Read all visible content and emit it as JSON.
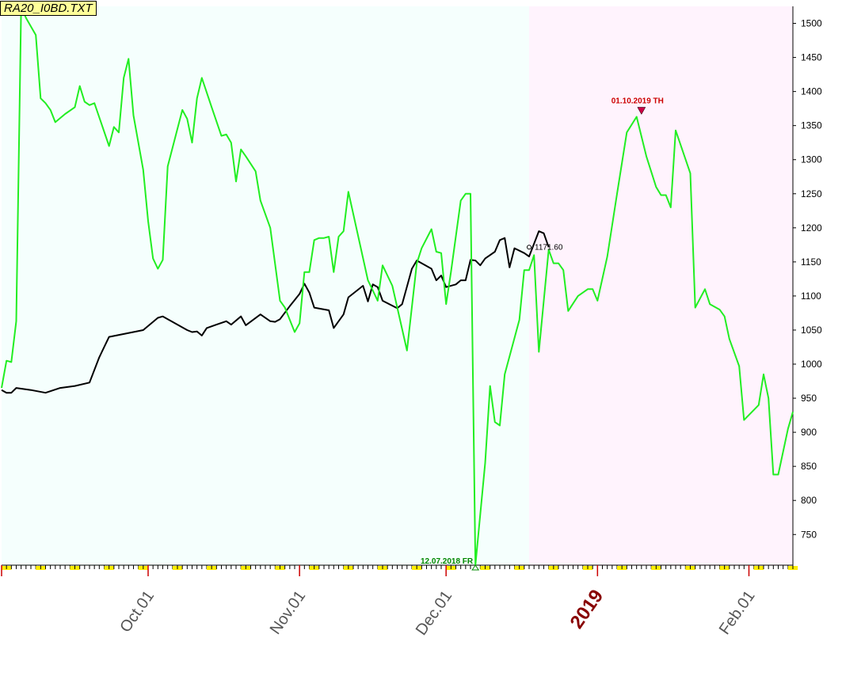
{
  "chart_data": {
    "type": "line",
    "title": "RA20_I0BD.TXT",
    "x_axis": {
      "labels": [
        "Oct.01",
        "Nov.01",
        "Dec.01",
        "2019",
        "Feb.01"
      ],
      "range": [
        "2018-09-01",
        "2019-02-10"
      ]
    },
    "y_axis": {
      "position": "right",
      "range": [
        705,
        1525
      ],
      "ticks": [
        750,
        800,
        850,
        900,
        950,
        1000,
        1050,
        1100,
        1150,
        1200,
        1250,
        1300,
        1350,
        1400,
        1450,
        1500
      ]
    },
    "regions": [
      {
        "from": "2018-09-01",
        "to": "2018-12-18",
        "color": "#f5fffd"
      },
      {
        "from": "2018-12-18",
        "to": "2019-02-10",
        "color": "#fff3fd"
      }
    ],
    "annotations": [
      {
        "text": "01.10.2019 TH",
        "date": "2019-01-10",
        "value": 1363,
        "color": "#cc0000",
        "marker": "down-arrow"
      },
      {
        "text": "12.07.2018 FR",
        "date": "2018-12-07",
        "value": 705,
        "color": "#008800",
        "marker": "up-arrow"
      },
      {
        "text": "1171.60",
        "date": "2018-12-18",
        "value": 1171.6,
        "color": "#000000",
        "marker": "circle"
      }
    ],
    "series": [
      {
        "color": "#000000",
        "points": [
          [
            "2018-09-01",
            962
          ],
          [
            "2018-09-02",
            958
          ],
          [
            "2018-09-03",
            958
          ],
          [
            "2018-09-04",
            965
          ],
          [
            "2018-09-07",
            962
          ],
          [
            "2018-09-10",
            958
          ],
          [
            "2018-09-13",
            965
          ],
          [
            "2018-09-16",
            968
          ],
          [
            "2018-09-19",
            973
          ],
          [
            "2018-09-21",
            1010
          ],
          [
            "2018-09-23",
            1040
          ],
          [
            "2018-09-30",
            1050
          ],
          [
            "2018-10-02",
            1062
          ],
          [
            "2018-10-03",
            1068
          ],
          [
            "2018-10-04",
            1070
          ],
          [
            "2018-10-06",
            1062
          ],
          [
            "2018-10-09",
            1050
          ],
          [
            "2018-10-10",
            1047
          ],
          [
            "2018-10-11",
            1048
          ],
          [
            "2018-10-12",
            1042
          ],
          [
            "2018-10-13",
            1053
          ],
          [
            "2018-10-15",
            1058
          ],
          [
            "2018-10-17",
            1063
          ],
          [
            "2018-10-18",
            1058
          ],
          [
            "2018-10-20",
            1070
          ],
          [
            "2018-10-21",
            1057
          ],
          [
            "2018-10-24",
            1073
          ],
          [
            "2018-10-26",
            1063
          ],
          [
            "2018-10-27",
            1062
          ],
          [
            "2018-10-28",
            1066
          ],
          [
            "2018-10-30",
            1085
          ],
          [
            "2018-11-01",
            1103
          ],
          [
            "2018-11-02",
            1118
          ],
          [
            "2018-11-03",
            1105
          ],
          [
            "2018-11-04",
            1083
          ],
          [
            "2018-11-07",
            1079
          ],
          [
            "2018-11-08",
            1053
          ],
          [
            "2018-11-10",
            1073
          ],
          [
            "2018-11-11",
            1098
          ],
          [
            "2018-11-14",
            1115
          ],
          [
            "2018-11-15",
            1092
          ],
          [
            "2018-11-16",
            1117
          ],
          [
            "2018-11-17",
            1113
          ],
          [
            "2018-11-18",
            1093
          ],
          [
            "2018-11-21",
            1082
          ],
          [
            "2018-11-22",
            1088
          ],
          [
            "2018-11-24",
            1140
          ],
          [
            "2018-11-25",
            1152
          ],
          [
            "2018-11-28",
            1140
          ],
          [
            "2018-11-29",
            1123
          ],
          [
            "2018-11-30",
            1130
          ],
          [
            "2018-12-01",
            1113
          ],
          [
            "2018-12-03",
            1117
          ],
          [
            "2018-12-04",
            1123
          ],
          [
            "2018-12-05",
            1123
          ],
          [
            "2018-12-06",
            1153
          ],
          [
            "2018-12-07",
            1152
          ],
          [
            "2018-12-08",
            1145
          ],
          [
            "2018-12-09",
            1155
          ],
          [
            "2018-12-11",
            1165
          ],
          [
            "2018-12-12",
            1182
          ],
          [
            "2018-12-13",
            1185
          ],
          [
            "2018-12-14",
            1142
          ],
          [
            "2018-12-15",
            1170
          ],
          [
            "2018-12-17",
            1163
          ],
          [
            "2018-12-18",
            1158
          ],
          [
            "2018-12-20",
            1195
          ],
          [
            "2018-12-21",
            1192
          ],
          [
            "2018-12-22",
            1171.6
          ]
        ]
      },
      {
        "color": "#22ee22",
        "points": [
          [
            "2018-09-01",
            965
          ],
          [
            "2018-09-02",
            1005
          ],
          [
            "2018-09-03",
            1003
          ],
          [
            "2018-09-04",
            1063
          ],
          [
            "2018-09-05",
            1525
          ],
          [
            "2018-09-06",
            1508
          ],
          [
            "2018-09-08",
            1483
          ],
          [
            "2018-09-09",
            1390
          ],
          [
            "2018-09-10",
            1383
          ],
          [
            "2018-09-11",
            1373
          ],
          [
            "2018-09-12",
            1355
          ],
          [
            "2018-09-14",
            1367
          ],
          [
            "2018-09-16",
            1377
          ],
          [
            "2018-09-17",
            1408
          ],
          [
            "2018-09-18",
            1385
          ],
          [
            "2018-09-19",
            1380
          ],
          [
            "2018-09-20",
            1383
          ],
          [
            "2018-09-23",
            1320
          ],
          [
            "2018-09-24",
            1348
          ],
          [
            "2018-09-25",
            1340
          ],
          [
            "2018-09-26",
            1420
          ],
          [
            "2018-09-27",
            1448
          ],
          [
            "2018-09-28",
            1365
          ],
          [
            "2018-09-30",
            1285
          ],
          [
            "2018-10-01",
            1210
          ],
          [
            "2018-10-02",
            1155
          ],
          [
            "2018-10-03",
            1140
          ],
          [
            "2018-10-04",
            1153
          ],
          [
            "2018-10-05",
            1290
          ],
          [
            "2018-10-08",
            1373
          ],
          [
            "2018-10-09",
            1360
          ],
          [
            "2018-10-10",
            1325
          ],
          [
            "2018-10-11",
            1390
          ],
          [
            "2018-10-12",
            1420
          ],
          [
            "2018-10-14",
            1377
          ],
          [
            "2018-10-16",
            1335
          ],
          [
            "2018-10-17",
            1337
          ],
          [
            "2018-10-18",
            1325
          ],
          [
            "2018-10-19",
            1268
          ],
          [
            "2018-10-20",
            1315
          ],
          [
            "2018-10-21",
            1305
          ],
          [
            "2018-10-23",
            1283
          ],
          [
            "2018-10-24",
            1240
          ],
          [
            "2018-10-26",
            1200
          ],
          [
            "2018-10-28",
            1093
          ],
          [
            "2018-10-29",
            1083
          ],
          [
            "2018-10-31",
            1047
          ],
          [
            "2018-11-01",
            1060
          ],
          [
            "2018-11-02",
            1135
          ],
          [
            "2018-11-03",
            1135
          ],
          [
            "2018-11-04",
            1182
          ],
          [
            "2018-11-05",
            1185
          ],
          [
            "2018-11-06",
            1185
          ],
          [
            "2018-11-07",
            1187
          ],
          [
            "2018-11-08",
            1135
          ],
          [
            "2018-11-09",
            1187
          ],
          [
            "2018-11-10",
            1195
          ],
          [
            "2018-11-11",
            1253
          ],
          [
            "2018-11-15",
            1123
          ],
          [
            "2018-11-16",
            1108
          ],
          [
            "2018-11-17",
            1093
          ],
          [
            "2018-11-18",
            1145
          ],
          [
            "2018-11-20",
            1115
          ],
          [
            "2018-11-23",
            1020
          ],
          [
            "2018-11-25",
            1148
          ],
          [
            "2018-11-26",
            1170
          ],
          [
            "2018-11-28",
            1198
          ],
          [
            "2018-11-29",
            1165
          ],
          [
            "2018-11-30",
            1163
          ],
          [
            "2018-12-01",
            1088
          ],
          [
            "2018-12-02",
            1135
          ],
          [
            "2018-12-04",
            1240
          ],
          [
            "2018-12-05",
            1250
          ],
          [
            "2018-12-06",
            1250
          ],
          [
            "2018-12-07",
            705
          ],
          [
            "2018-12-09",
            855
          ],
          [
            "2018-12-10",
            968
          ],
          [
            "2018-12-11",
            915
          ],
          [
            "2018-12-12",
            910
          ],
          [
            "2018-12-13",
            985
          ],
          [
            "2018-12-16",
            1065
          ],
          [
            "2018-12-17",
            1138
          ],
          [
            "2018-12-18",
            1138
          ],
          [
            "2018-12-19",
            1160
          ],
          [
            "2018-12-20",
            1018
          ],
          [
            "2018-12-22",
            1168
          ],
          [
            "2018-12-23",
            1148
          ],
          [
            "2018-12-24",
            1148
          ],
          [
            "2018-12-25",
            1138
          ],
          [
            "2018-12-26",
            1078
          ],
          [
            "2018-12-28",
            1100
          ],
          [
            "2018-12-30",
            1110
          ],
          [
            "2018-12-31",
            1110
          ],
          [
            "2019-01-01",
            1093
          ],
          [
            "2019-01-03",
            1158
          ],
          [
            "2019-01-05",
            1250
          ],
          [
            "2019-01-07",
            1340
          ],
          [
            "2019-01-09",
            1363
          ],
          [
            "2019-01-11",
            1305
          ],
          [
            "2019-01-13",
            1260
          ],
          [
            "2019-01-14",
            1248
          ],
          [
            "2019-01-15",
            1248
          ],
          [
            "2019-01-16",
            1230
          ],
          [
            "2019-01-17",
            1343
          ],
          [
            "2019-01-20",
            1280
          ],
          [
            "2019-01-21",
            1083
          ],
          [
            "2019-01-23",
            1110
          ],
          [
            "2019-01-24",
            1088
          ],
          [
            "2019-01-26",
            1080
          ],
          [
            "2019-01-27",
            1070
          ],
          [
            "2019-01-28",
            1037
          ],
          [
            "2019-01-30",
            997
          ],
          [
            "2019-01-31",
            918
          ],
          [
            "2019-02-03",
            940
          ],
          [
            "2019-02-04",
            985
          ],
          [
            "2019-02-05",
            950
          ],
          [
            "2019-02-06",
            838
          ],
          [
            "2019-02-07",
            838
          ],
          [
            "2019-02-09",
            905
          ],
          [
            "2019-02-10",
            930
          ]
        ]
      }
    ]
  }
}
